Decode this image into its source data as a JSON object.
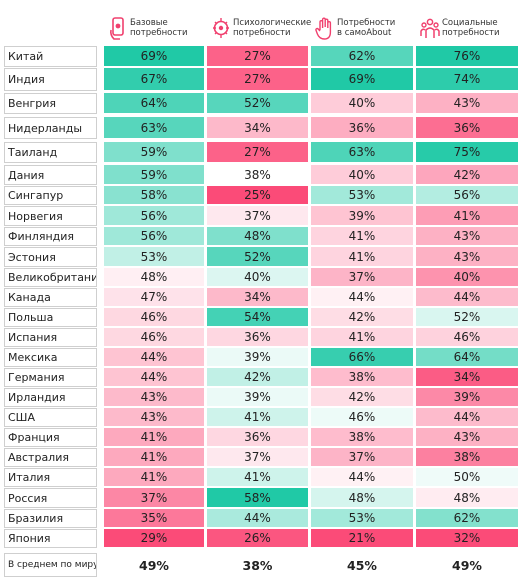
{
  "chart_data": {
    "type": "table",
    "columns": [
      "Базовые\nпотребности",
      "Психологические\nпотребности",
      "Потребности\nв самоAbout",
      "Социальные\nпотребности"
    ],
    "rows": [
      {
        "country": "Китай",
        "values": [
          69,
          27,
          62,
          76
        ]
      },
      {
        "country": "Индия",
        "values": [
          67,
          27,
          69,
          74
        ]
      },
      {
        "country": "Венгрия",
        "values": [
          64,
          52,
          40,
          43
        ]
      },
      {
        "country": "Нидерланды",
        "values": [
          63,
          34,
          36,
          36
        ]
      },
      {
        "country": "Таиланд",
        "values": [
          59,
          27,
          63,
          75
        ]
      },
      {
        "country": "Дания",
        "values": [
          59,
          38,
          40,
          42
        ]
      },
      {
        "country": "Сингапур",
        "values": [
          58,
          25,
          53,
          56
        ]
      },
      {
        "country": "Норвегия",
        "values": [
          56,
          37,
          39,
          41
        ]
      },
      {
        "country": "Финляндия",
        "values": [
          56,
          48,
          41,
          43
        ]
      },
      {
        "country": "Эстония",
        "values": [
          53,
          52,
          41,
          43
        ]
      },
      {
        "country": "Великобритания",
        "values": [
          48,
          40,
          37,
          40
        ]
      },
      {
        "country": "Канада",
        "values": [
          47,
          34,
          44,
          44
        ]
      },
      {
        "country": "Польша",
        "values": [
          46,
          54,
          42,
          52
        ]
      },
      {
        "country": "Испания",
        "values": [
          46,
          36,
          41,
          46
        ]
      },
      {
        "country": "Мексика",
        "values": [
          44,
          39,
          66,
          64
        ]
      },
      {
        "country": "Германия",
        "values": [
          44,
          42,
          38,
          34
        ]
      },
      {
        "country": "Ирландия",
        "values": [
          43,
          39,
          42,
          39
        ]
      },
      {
        "country": "США",
        "values": [
          43,
          41,
          46,
          44
        ]
      },
      {
        "country": "Франция",
        "values": [
          41,
          36,
          38,
          43
        ]
      },
      {
        "country": "Австралия",
        "values": [
          41,
          37,
          37,
          38
        ]
      },
      {
        "country": "Италия",
        "values": [
          41,
          41,
          44,
          50
        ]
      },
      {
        "country": "Россия",
        "values": [
          37,
          58,
          48,
          48
        ]
      },
      {
        "country": "Бразилия",
        "values": [
          35,
          44,
          53,
          62
        ]
      },
      {
        "country": "Япония",
        "values": [
          29,
          26,
          21,
          32
        ]
      }
    ],
    "average": {
      "label": "В среднем по миру",
      "values": [
        49,
        38,
        45,
        49
      ]
    },
    "value_suffix": "%",
    "colors": {
      "high": "#20c9a6",
      "low": "#fb4b78",
      "neutral": "#ffffff"
    }
  }
}
